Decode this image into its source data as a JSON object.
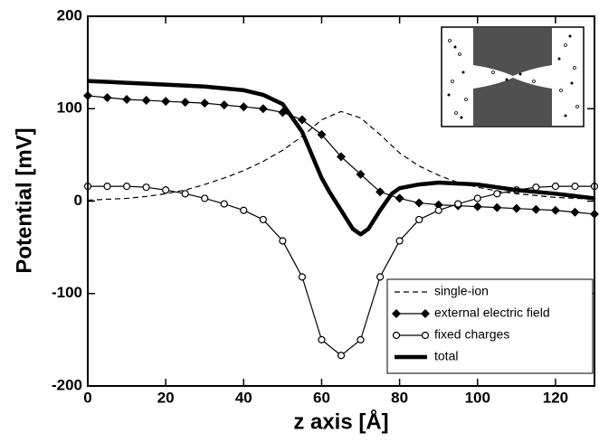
{
  "chart_data": {
    "type": "line",
    "xlabel": "z axis [Å]",
    "ylabel": "Potential [mV]",
    "xlim": [
      0,
      130
    ],
    "xticks": [
      0,
      20,
      40,
      60,
      80,
      100,
      120
    ],
    "ylim": [
      -200,
      200
    ],
    "yticks": [
      -200,
      -100,
      0,
      100,
      200
    ],
    "legend": "lower right",
    "series": [
      {
        "name": "single-ion",
        "color": "#000000",
        "dash": true,
        "marker": null,
        "line_width": 1.2,
        "x": [
          0,
          5,
          10,
          15,
          20,
          25,
          30,
          35,
          40,
          45,
          50,
          55,
          60,
          65,
          70,
          75,
          80,
          85,
          90,
          95,
          100,
          105,
          110,
          115,
          120,
          125,
          130
        ],
        "y": [
          1,
          2,
          3,
          5,
          8,
          12,
          18,
          25,
          33,
          43,
          55,
          70,
          88,
          97,
          90,
          72,
          52,
          38,
          28,
          20,
          15,
          11,
          8,
          6,
          4,
          3,
          2
        ]
      },
      {
        "name": "external electric field",
        "color": "#000000",
        "dash": false,
        "marker": "diamond",
        "line_width": 1.2,
        "x": [
          0,
          5,
          10,
          15,
          20,
          25,
          30,
          35,
          40,
          45,
          50,
          55,
          60,
          65,
          70,
          75,
          80,
          85,
          90,
          95,
          100,
          105,
          110,
          115,
          120,
          125,
          130
        ],
        "y": [
          114,
          112,
          110,
          109,
          108,
          107,
          106,
          104,
          102,
          100,
          96,
          88,
          72,
          48,
          29,
          10,
          3,
          -2,
          -4,
          -5,
          -6,
          -7,
          -8,
          -9,
          -10,
          -12,
          -14
        ]
      },
      {
        "name": "fixed charges",
        "color": "#000000",
        "dash": false,
        "marker": "circle",
        "line_width": 1.2,
        "x": [
          0,
          5,
          10,
          15,
          20,
          25,
          30,
          35,
          40,
          45,
          50,
          55,
          60,
          65,
          70,
          75,
          80,
          85,
          90,
          95,
          100,
          105,
          110,
          115,
          120,
          125,
          130
        ],
        "y": [
          16,
          16,
          16,
          15,
          12,
          8,
          3,
          -3,
          -10,
          -20,
          -43,
          -82,
          -150,
          -167,
          -150,
          -82,
          -43,
          -20,
          -10,
          -3,
          3,
          8,
          12,
          15,
          16,
          16,
          16
        ]
      },
      {
        "name": "total",
        "color": "#000000",
        "dash": false,
        "marker": null,
        "line_width": 4.5,
        "x": [
          0,
          10,
          20,
          30,
          40,
          45,
          50,
          55,
          58,
          60,
          62,
          65,
          68,
          70,
          72,
          75,
          78,
          80,
          85,
          90,
          100,
          110,
          120,
          130
        ],
        "y": [
          130,
          128,
          126,
          124,
          120,
          115,
          105,
          75,
          45,
          25,
          10,
          -10,
          -30,
          -36,
          -30,
          -10,
          8,
          14,
          18,
          20,
          18,
          12,
          8,
          3
        ]
      }
    ]
  }
}
